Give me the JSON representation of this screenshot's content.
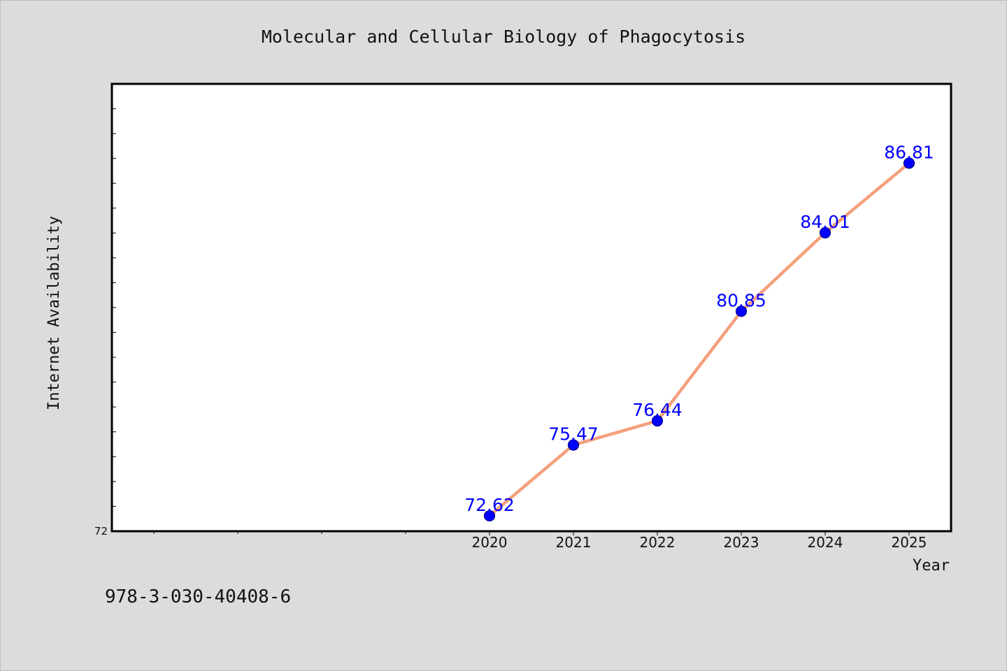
{
  "chart_data": {
    "type": "line",
    "title": "Molecular and Cellular Biology of Phagocytosis",
    "xlabel": "Year",
    "ylabel": "Internet Availability",
    "categories": [
      "2020",
      "2021",
      "2022",
      "2023",
      "2024",
      "2025"
    ],
    "series": [
      {
        "values": [
          72.62,
          75.47,
          76.44,
          80.85,
          84.01,
          86.81
        ],
        "labels": [
          "72.62",
          "75.47",
          "76.44",
          "80.85",
          "84.01",
          "86.81"
        ]
      }
    ],
    "y_tick_labels": [
      "72"
    ],
    "ylim": [
      72,
      90
    ],
    "x_slot_count": 10,
    "grid": false,
    "colors": {
      "line": "#f4a07c",
      "marker": "#0000ff",
      "marker_edge": "#00008b",
      "data_label": "#0000ff",
      "plot_bg": "#ffffff",
      "figure_bg": "#dcdcdc"
    }
  },
  "footer": {
    "isbn": "978-3-030-40408-6"
  }
}
